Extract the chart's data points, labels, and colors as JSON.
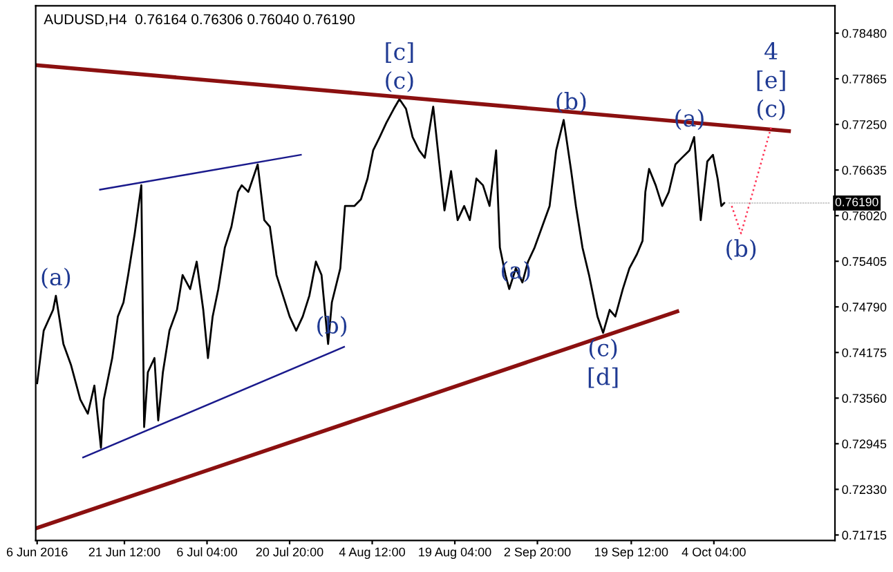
{
  "chart_data": {
    "type": "line",
    "title": "AUDUSD,H4  0.76164 0.76306 0.76040 0.76190",
    "xlim": [
      "2016-06-05T18:00",
      "2016-10-25T16:00"
    ],
    "ylim": [
      0.7164,
      0.7885
    ],
    "xticks": [
      {
        "value": "2016-06-06T00:00",
        "label": "6 Jun 2016"
      },
      {
        "value": "2016-06-21T12:00",
        "label": "21 Jun 12:00"
      },
      {
        "value": "2016-07-06T04:00",
        "label": "6 Jul 04:00"
      },
      {
        "value": "2016-07-20T20:00",
        "label": "20 Jul 20:00"
      },
      {
        "value": "2016-08-04T12:00",
        "label": "4 Aug 12:00"
      },
      {
        "value": "2016-08-19T04:00",
        "label": "19 Aug 04:00"
      },
      {
        "value": "2016-09-02T20:00",
        "label": "2 Sep 20:00"
      },
      {
        "value": "2016-09-19T12:00",
        "label": "19 Sep 12:00"
      },
      {
        "value": "2016-10-04T04:00",
        "label": "4 Oct 04:00"
      }
    ],
    "yticks": [
      {
        "value": 0.7848,
        "label": "0.78480"
      },
      {
        "value": 0.77865,
        "label": "0.77865"
      },
      {
        "value": 0.7725,
        "label": "0.77250"
      },
      {
        "value": 0.76635,
        "label": "0.76635"
      },
      {
        "value": 0.7602,
        "label": "0.76020"
      },
      {
        "value": 0.75405,
        "label": "0.75405"
      },
      {
        "value": 0.7479,
        "label": "0.74790"
      },
      {
        "value": 0.74175,
        "label": "0.74175"
      },
      {
        "value": 0.7356,
        "label": "0.73560"
      },
      {
        "value": 0.72945,
        "label": "0.72945"
      },
      {
        "value": 0.7233,
        "label": "0.72330"
      },
      {
        "value": 0.71715,
        "label": "0.71715"
      }
    ],
    "grid": false,
    "legend": false,
    "series": [
      {
        "color": "#000000",
        "x": [
          "2016-06-06T00:00",
          "2016-06-07T04:00",
          "2016-06-08T20:00",
          "2016-06-09T08:00",
          "2016-06-10T16:00",
          "2016-06-12T00:00",
          "2016-06-13T16:00",
          "2016-06-15T00:00",
          "2016-06-16T04:00",
          "2016-06-17T08:00",
          "2016-06-17T20:00",
          "2016-06-19T08:00",
          "2016-06-20T08:00",
          "2016-06-21T08:00",
          "2016-06-22T04:00",
          "2016-06-23T08:00",
          "2016-06-24T12:00",
          "2016-06-25T00:00",
          "2016-06-25T16:00",
          "2016-06-26T20:00",
          "2016-06-27T12:00",
          "2016-06-28T08:00",
          "2016-06-29T12:00",
          "2016-06-30T20:00",
          "2016-07-01T20:00",
          "2016-07-03T04:00",
          "2016-07-04T08:00",
          "2016-07-05T12:00",
          "2016-07-06T08:00",
          "2016-07-07T04:00",
          "2016-07-08T04:00",
          "2016-07-09T08:00",
          "2016-07-10T12:00",
          "2016-07-11T16:00",
          "2016-07-12T08:00",
          "2016-07-13T12:00",
          "2016-07-15T04:00",
          "2016-07-16T08:00",
          "2016-07-17T08:00",
          "2016-07-18T12:00",
          "2016-07-19T16:00",
          "2016-07-20T20:00",
          "2016-07-22T00:00",
          "2016-07-23T04:00",
          "2016-07-24T08:00",
          "2016-07-25T12:00",
          "2016-07-26T12:00",
          "2016-07-27T16:00",
          "2016-07-28T08:00",
          "2016-07-29T20:00",
          "2016-07-30T16:00",
          "2016-08-01T08:00",
          "2016-08-02T12:00",
          "2016-08-03T16:00",
          "2016-08-04T16:00",
          "2016-08-05T20:00",
          "2016-08-07T00:00",
          "2016-08-08T08:00",
          "2016-08-09T08:00",
          "2016-08-10T12:00",
          "2016-08-11T16:00",
          "2016-08-12T20:00",
          "2016-08-13T20:00",
          "2016-08-15T08:00",
          "2016-08-16T04:00",
          "2016-08-17T08:00",
          "2016-08-18T12:00",
          "2016-08-19T16:00",
          "2016-08-20T20:00",
          "2016-08-21T20:00",
          "2016-08-23T00:00",
          "2016-08-24T04:00",
          "2016-08-25T08:00",
          "2016-08-26T12:00",
          "2016-08-27T04:00",
          "2016-08-28T04:00",
          "2016-08-28T20:00",
          "2016-08-30T00:00",
          "2016-08-31T04:00",
          "2016-09-01T04:00",
          "2016-09-02T08:00",
          "2016-09-03T16:00",
          "2016-09-05T00:00",
          "2016-09-06T04:00",
          "2016-09-07T12:00",
          "2016-09-08T20:00",
          "2016-09-09T16:00",
          "2016-09-10T20:00",
          "2016-09-12T00:00",
          "2016-09-13T12:00",
          "2016-09-14T12:00",
          "2016-09-15T16:00",
          "2016-09-16T16:00",
          "2016-09-18T00:00",
          "2016-09-19T04:00",
          "2016-09-20T12:00",
          "2016-09-21T12:00",
          "2016-09-22T00:00",
          "2016-09-22T16:00",
          "2016-09-23T20:00",
          "2016-09-25T00:00",
          "2016-09-26T04:00",
          "2016-09-27T08:00",
          "2016-09-28T12:00",
          "2016-09-29T20:00",
          "2016-09-30T16:00",
          "2016-10-01T20:00",
          "2016-10-03T00:00",
          "2016-10-04T00:00",
          "2016-10-04T20:00",
          "2016-10-05T12:00",
          "2016-10-06T00:00"
        ],
        "values": [
          0.7376,
          0.7447,
          0.7475,
          0.7494,
          0.7429,
          0.7401,
          0.7354,
          0.7335,
          0.7373,
          0.7289,
          0.7354,
          0.741,
          0.7466,
          0.7485,
          0.7522,
          0.7578,
          0.7643,
          0.7317,
          0.7391,
          0.741,
          0.7326,
          0.7391,
          0.7447,
          0.7475,
          0.7522,
          0.7503,
          0.754,
          0.7475,
          0.741,
          0.7466,
          0.7503,
          0.7559,
          0.7587,
          0.7634,
          0.7643,
          0.7634,
          0.7671,
          0.7596,
          0.7587,
          0.7522,
          0.7494,
          0.7466,
          0.7447,
          0.7466,
          0.7494,
          0.754,
          0.7522,
          0.7429,
          0.7485,
          0.7531,
          0.7615,
          0.7615,
          0.7624,
          0.7652,
          0.769,
          0.7708,
          0.7727,
          0.7746,
          0.7759,
          0.7746,
          0.7708,
          0.769,
          0.768,
          0.7749,
          0.769,
          0.7609,
          0.7662,
          0.7596,
          0.7615,
          0.7596,
          0.7652,
          0.7643,
          0.7615,
          0.769,
          0.7559,
          0.7522,
          0.7503,
          0.7531,
          0.7512,
          0.754,
          0.7559,
          0.7587,
          0.7615,
          0.769,
          0.7731,
          0.7662,
          0.7615,
          0.7559,
          0.7522,
          0.7466,
          0.7444,
          0.7475,
          0.7466,
          0.7503,
          0.7531,
          0.755,
          0.7568,
          0.7634,
          0.7665,
          0.7643,
          0.7615,
          0.7634,
          0.7671,
          0.768,
          0.769,
          0.7708,
          0.7596,
          0.7675,
          0.7684,
          0.7652,
          0.7615,
          0.7619
        ]
      },
      {
        "color": "#8b1010",
        "x": [
          "2016-06-05T18:00",
          "2016-10-17T12:00"
        ],
        "values": [
          0.7805,
          0.7716
        ]
      },
      {
        "color": "#8b1010",
        "x": [
          "2016-06-06T00:00",
          "2016-09-27T16:00"
        ],
        "values": [
          0.7181,
          0.7473
        ]
      },
      {
        "color": "#1a1a8c",
        "x": [
          "2016-06-17T04:00",
          "2016-07-22T20:00"
        ],
        "values": [
          0.7637,
          0.7684
        ]
      },
      {
        "color": "#1a1a8c",
        "x": [
          "2016-06-14T04:00",
          "2016-07-30T12:00"
        ],
        "values": [
          0.7276,
          0.7425
        ]
      },
      {
        "color": "#ff3355",
        "line_style": "dotted",
        "x": [
          "2016-10-07T08:00",
          "2016-10-09T00:00",
          "2016-10-14T08:00"
        ],
        "values": [
          0.7615,
          0.7578,
          0.7721
        ]
      }
    ],
    "annotations": [
      {
        "text": "(a)",
        "x": "2016-06-09T08:00",
        "y": 0.7494
      },
      {
        "text": "(b)",
        "x": "2016-07-28T08:00",
        "y": 0.7429
      },
      {
        "text": "(c)",
        "x": "2016-08-09T08:00",
        "y": 0.7759
      },
      {
        "text": "[c]",
        "x": "2016-08-09T08:00",
        "y": 0.7759
      },
      {
        "text": "(a)",
        "x": "2016-08-30T00:00",
        "y": 0.7503
      },
      {
        "text": "(b)",
        "x": "2016-09-08T20:00",
        "y": 0.7731
      },
      {
        "text": "(c)",
        "x": "2016-09-14T12:00",
        "y": 0.7444
      },
      {
        "text": "[d]",
        "x": "2016-09-14T12:00",
        "y": 0.7444
      },
      {
        "text": "(a)",
        "x": "2016-09-29T20:00",
        "y": 0.7708
      },
      {
        "text": "(b)",
        "x": "2016-10-09T00:00",
        "y": 0.7578
      },
      {
        "text": "(c)",
        "x": "2016-10-14T08:00",
        "y": 0.7721
      },
      {
        "text": "[e]",
        "x": "2016-10-14T08:00",
        "y": 0.7721
      },
      {
        "text": "4",
        "x": "2016-10-14T08:00",
        "y": 0.7721
      },
      {
        "text": "0.76190",
        "x": "2016-10-06T00:00",
        "y": 0.7619
      }
    ]
  }
}
